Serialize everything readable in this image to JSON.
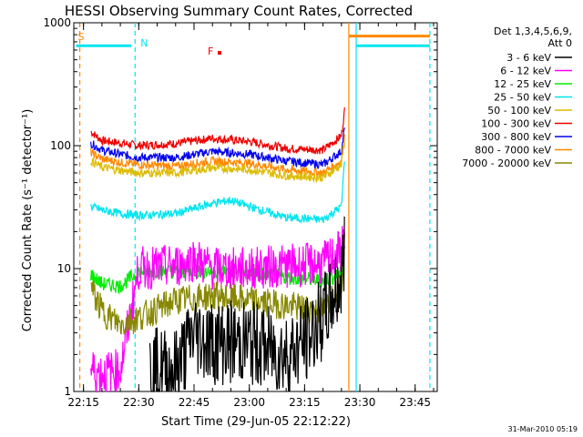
{
  "chart_data": {
    "type": "line",
    "title": "HESSI Observing Summary Count Rates, Corrected",
    "xlabel": "Start Time (29-Jun-05 22:12:22)",
    "ylabel": "Corrected Count Rate (s⁻¹ detector⁻¹)",
    "yscale": "log",
    "ylim": [
      1,
      1000
    ],
    "xlim": [
      "22:12:22",
      "23:51:00"
    ],
    "x_ticks": [
      "22:15",
      "22:30",
      "22:45",
      "23:00",
      "23:15",
      "23:30",
      "23:45"
    ],
    "y_ticks": [
      "1",
      "10",
      "100",
      "1000"
    ],
    "legend": {
      "position": "right",
      "header": [
        "Det 1,3,4,5,6,9,",
        "Att 0"
      ],
      "entries": [
        {
          "label": "3 - 6 keV",
          "color": "#000000"
        },
        {
          "label": "6 - 12 keV",
          "color": "#ff00ff"
        },
        {
          "label": "12 - 25 keV",
          "color": "#00ee00"
        },
        {
          "label": "25 - 50 keV",
          "color": "#00e5ee"
        },
        {
          "label": "50 - 100 keV",
          "color": "#ddbb00"
        },
        {
          "label": "100 - 300 keV",
          "color": "#ee0000"
        },
        {
          "label": "300 - 800 keV",
          "color": "#0000ee"
        },
        {
          "label": "800 - 7000 keV",
          "color": "#ff8800"
        },
        {
          "label": "7000 - 20000 keV",
          "color": "#888800"
        }
      ]
    },
    "flags": [
      {
        "label": "S",
        "color": "#ff8800"
      },
      {
        "label": "N",
        "color": "#00e5ee"
      },
      {
        "label": "F",
        "color": "#ee0000"
      }
    ],
    "series": [
      {
        "name": "100 - 300 keV",
        "color": "#ee0000",
        "x": [
          "22:17",
          "22:20",
          "22:25",
          "22:30",
          "22:40",
          "22:50",
          "23:00",
          "23:10",
          "23:20",
          "23:25",
          "23:26"
        ],
        "y": [
          130,
          110,
          105,
          100,
          104,
          115,
          108,
          95,
          92,
          120,
          210
        ]
      },
      {
        "name": "300 - 800 keV",
        "color": "#0000ee",
        "x": [
          "22:17",
          "22:20",
          "22:25",
          "22:30",
          "22:40",
          "22:50",
          "23:00",
          "23:10",
          "23:20",
          "23:25",
          "23:26"
        ],
        "y": [
          105,
          92,
          85,
          80,
          80,
          90,
          85,
          75,
          70,
          90,
          150
        ]
      },
      {
        "name": "800 - 7000 keV",
        "color": "#ff8800",
        "x": [
          "22:17",
          "22:20",
          "22:25",
          "22:30",
          "22:40",
          "22:50",
          "23:00",
          "23:10",
          "23:20",
          "23:25",
          "23:26"
        ],
        "y": [
          88,
          78,
          73,
          70,
          68,
          75,
          72,
          64,
          60,
          75,
          130
        ]
      },
      {
        "name": "50 - 100 keV",
        "color": "#ddbb00",
        "x": [
          "22:17",
          "22:20",
          "22:25",
          "22:30",
          "22:40",
          "22:50",
          "23:00",
          "23:10",
          "23:20",
          "23:25",
          "23:26"
        ],
        "y": [
          75,
          67,
          63,
          60,
          60,
          66,
          64,
          57,
          55,
          70,
          120
        ]
      },
      {
        "name": "25 - 50 keV",
        "color": "#00e5ee",
        "x": [
          "22:17",
          "22:20",
          "22:25",
          "22:30",
          "22:40",
          "22:50",
          "22:55",
          "23:00",
          "23:10",
          "23:20",
          "23:25",
          "23:26"
        ],
        "y": [
          32,
          30,
          28,
          27,
          28,
          34,
          36,
          32,
          26,
          25,
          32,
          90
        ]
      },
      {
        "name": "12 - 25 keV",
        "color": "#00ee00",
        "x": [
          "22:17",
          "22:20",
          "22:25",
          "22:30",
          "22:40",
          "22:50",
          "23:00",
          "23:10",
          "23:20",
          "23:25",
          "23:26"
        ],
        "y": [
          9,
          7.5,
          7.2,
          9.5,
          9.5,
          9.5,
          9.3,
          8.5,
          8,
          9,
          22
        ]
      },
      {
        "name": "6 - 12 keV",
        "color": "#ff00ff",
        "x": [
          "22:17",
          "22:20",
          "22:25",
          "22:30",
          "22:40",
          "22:45",
          "22:50",
          "23:00",
          "23:10",
          "23:20",
          "23:25",
          "23:26"
        ],
        "y": [
          1.5,
          1.4,
          1.5,
          10,
          10.5,
          12,
          10,
          10,
          10.5,
          11,
          14,
          22
        ]
      },
      {
        "name": "7000 - 20000 keV",
        "color": "#888800",
        "x": [
          "22:17",
          "22:20",
          "22:25",
          "22:30",
          "22:40",
          "22:50",
          "23:00",
          "23:10",
          "23:20",
          "23:25",
          "23:26"
        ],
        "y": [
          7,
          4.5,
          3.5,
          4,
          5.5,
          6,
          5.5,
          5,
          4.5,
          8,
          20
        ]
      },
      {
        "name": "3 - 6 keV",
        "color": "#000000",
        "x": [
          "22:33",
          "22:40",
          "22:45",
          "22:50",
          "23:00",
          "23:10",
          "23:15",
          "23:20",
          "23:25",
          "23:26"
        ],
        "y": [
          1.5,
          1.5,
          3,
          2.5,
          2.5,
          2,
          2.5,
          4,
          8,
          18
        ]
      }
    ],
    "background_level": {
      "name": "800 - 7000 keV",
      "color": "#ff8800",
      "x": [
        "22:13",
        "22:28"
      ],
      "y": 650
    },
    "background_level_after": {
      "name": "800 - 7000 keV",
      "color": "#ff8800",
      "x": [
        "23:27",
        "23:49"
      ],
      "y": 780
    },
    "cyan_level_before": {
      "color": "#00e5ee",
      "x": [
        "22:13",
        "22:28"
      ],
      "y": 650
    },
    "cyan_level_after": {
      "color": "#00e5ee",
      "x": [
        "23:29",
        "23:49"
      ],
      "y": 650
    },
    "vlines": [
      {
        "x": "22:14",
        "color": "#ff8800"
      },
      {
        "x": "22:29",
        "color": "#00e5ee"
      },
      {
        "x": "23:27",
        "color": "#ff8800"
      },
      {
        "x": "23:29",
        "color": "#00e5ee"
      },
      {
        "x": "23:49",
        "color": "#00e5ee"
      }
    ]
  },
  "footer": {
    "datestamp": "31-Mar-2010 05:19"
  }
}
